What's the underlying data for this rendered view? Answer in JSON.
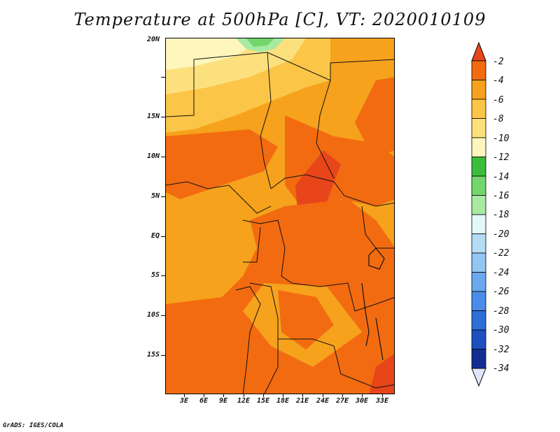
{
  "title": "Temperature at 500hPa [C], VT: 2020010109",
  "credit": "GrADS: IGES/COLA",
  "map": {
    "lat_labels": [
      "20N",
      "15N",
      "10N",
      "5N",
      "EQ",
      "5S",
      "10S",
      "15S"
    ],
    "lon_labels": [
      "3E",
      "6E",
      "9E",
      "12E",
      "15E",
      "18E",
      "21E",
      "24E",
      "27E",
      "30E",
      "33E"
    ],
    "lat_range": [
      -20,
      24
    ],
    "lon_range": [
      0,
      35
    ]
  },
  "colorbar": {
    "labels": [
      "-2",
      "-4",
      "-6",
      "-8",
      "-10",
      "-12",
      "-14",
      "-16",
      "-18",
      "-20",
      "-22",
      "-24",
      "-26",
      "-28",
      "-30",
      "-32",
      "-34"
    ],
    "colors": [
      "#e8451a",
      "#f26b11",
      "#f6a21c",
      "#fbc548",
      "#fde07e",
      "#fef6bc",
      "#3bbd3b",
      "#73d66d",
      "#a8eaa2",
      "#e3f8f8",
      "#b4dcf6",
      "#92c6f3",
      "#6ba9ee",
      "#4a8ce8",
      "#2f6ed9",
      "#1c4fbf",
      "#142d92",
      "#0a1467"
    ]
  }
}
